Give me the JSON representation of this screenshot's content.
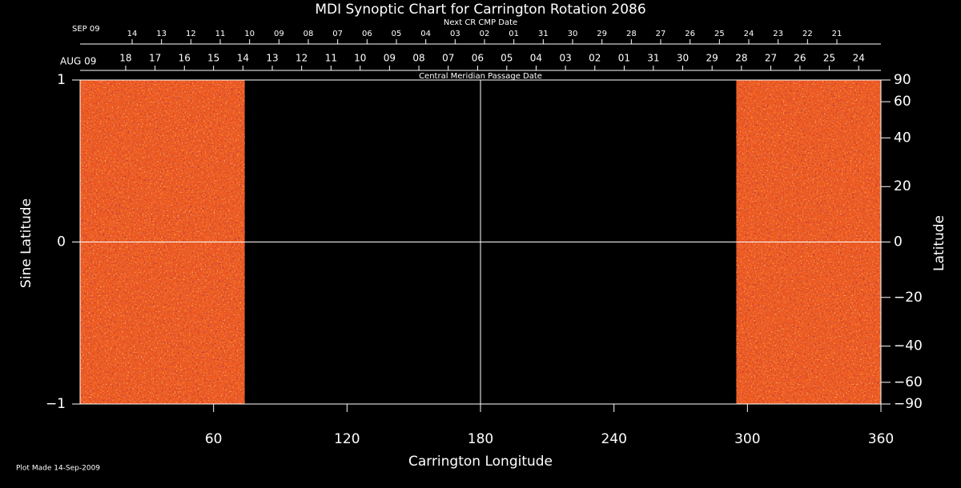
{
  "chart_data": {
    "type": "synoptic",
    "title": "MDI Synoptic Chart for Carrington Rotation 2086",
    "xlabel": "Carrington Longitude",
    "ylabel": "Sine Latitude",
    "y2label": "Latitude",
    "xlim": [
      0,
      360
    ],
    "xticks": [
      60,
      120,
      180,
      240,
      300,
      360
    ],
    "ylim": [
      -1,
      1
    ],
    "yticks": [
      {
        "value": -1,
        "label": "−1"
      },
      0,
      1
    ],
    "y2lim": [
      -90,
      90
    ],
    "y2scale": "sine",
    "y2ticks": [
      90,
      60,
      40,
      20,
      0,
      {
        "value": -20,
        "label": "−20"
      },
      {
        "value": -40,
        "label": "−40"
      },
      {
        "value": -60,
        "label": "−60"
      },
      {
        "value": -90,
        "label": "−90"
      }
    ],
    "coverage": [
      [
        0,
        74
      ],
      [
        295,
        360
      ]
    ],
    "color": "#ee5a20",
    "crosshair": {
      "x": 180,
      "y": 0
    },
    "top_axes": [
      {
        "name": "Central Meridian Passage Date",
        "start_label": "AUG 09",
        "color": "#ffffff",
        "categories": [
          "18",
          "17",
          "16",
          "15",
          "14",
          "13",
          "12",
          "11",
          "10",
          "09",
          "08",
          "07",
          "06",
          "05",
          "04",
          "03",
          "02",
          "01",
          "31",
          "30",
          "29",
          "28",
          "27",
          "26",
          "25",
          "24"
        ],
        "x": [
          20.5,
          33.7,
          46.9,
          60.0,
          73.2,
          86.4,
          99.6,
          112.8,
          125.9,
          139.1,
          152.3,
          165.5,
          178.7,
          191.8,
          205.0,
          218.2,
          231.4,
          244.6,
          257.7,
          270.9,
          284.1,
          297.3,
          310.5,
          323.6,
          336.8,
          350.0
        ]
      },
      {
        "name": "Next CR CMP Date",
        "start_label": "SEP 09",
        "color": "#ff4a2a",
        "categories": [
          "14",
          "13",
          "12",
          "11",
          "10",
          "09",
          "08",
          "07",
          "06",
          "05",
          "04",
          "03",
          "02",
          "01",
          "31",
          "30",
          "29",
          "28",
          "27",
          "26",
          "25",
          "24",
          "23",
          "22",
          "21"
        ],
        "x": [
          23.4,
          36.6,
          49.8,
          63.0,
          76.2,
          89.4,
          102.6,
          115.8,
          129.0,
          142.2,
          155.4,
          168.6,
          181.8,
          195.0,
          208.2,
          221.4,
          234.6,
          247.8,
          261.0,
          274.2,
          287.4,
          300.6,
          313.8,
          327.0,
          340.2
        ]
      }
    ],
    "footnote": "Plot Made 14-Sep-2009"
  }
}
